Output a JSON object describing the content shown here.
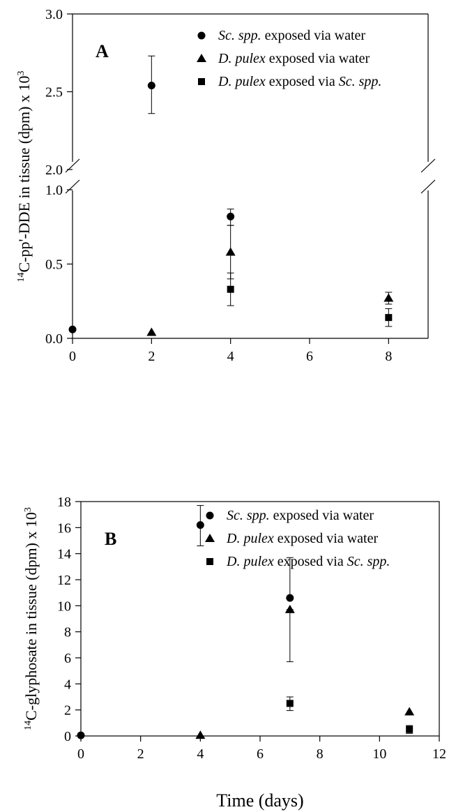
{
  "figure": {
    "x_title": "Time (days)"
  },
  "chart_data": [
    {
      "type": "scatter",
      "panel": "A",
      "ylabel_sup": "14",
      "ylabel_main": "C-pp'-DDE in tissue (dpm) x 10",
      "ylabel_exp": "3",
      "xlim": [
        0,
        9
      ],
      "x_ticks": [
        "0",
        "2",
        "4",
        "6",
        "8"
      ],
      "ylim": [
        0,
        3.0
      ],
      "y_axis_break": [
        1.0,
        2.0
      ],
      "y_ticks": [
        "0.0",
        "0.5",
        "1.0",
        "2.0",
        "2.5",
        "3.0"
      ],
      "grid": false,
      "legend_position": "top-right",
      "series": [
        {
          "name_italic": "Sc. spp.",
          "name_rest": " exposed via water",
          "marker": "circle",
          "points": [
            {
              "x": 0,
              "y": 0.06
            },
            {
              "x": 2,
              "y": 2.54,
              "err_low": 2.36,
              "err_high": 2.73
            },
            {
              "x": 4,
              "y": 0.82,
              "err_low": 0.76,
              "err_high": 0.87
            }
          ]
        },
        {
          "name_italic": "D. pulex",
          "name_rest": " exposed via water",
          "marker": "triangle",
          "points": [
            {
              "x": 2,
              "y": 0.04
            },
            {
              "x": 4,
              "y": 0.58,
              "err_low": 0.4,
              "err_high": 0.76
            },
            {
              "x": 8,
              "y": 0.27,
              "err_low": 0.23,
              "err_high": 0.31
            }
          ]
        },
        {
          "name_italic": "D. pulex",
          "name_rest": " exposed via ",
          "name_italic2": "Sc. spp.",
          "marker": "square",
          "points": [
            {
              "x": 4,
              "y": 0.33,
              "err_low": 0.22,
              "err_high": 0.44
            },
            {
              "x": 8,
              "y": 0.14,
              "err_low": 0.08,
              "err_high": 0.2
            }
          ]
        }
      ]
    },
    {
      "type": "scatter",
      "panel": "B",
      "ylabel_sup": "14",
      "ylabel_main": "C-glyphosate in tissue (dpm) x 10",
      "ylabel_exp": "3",
      "xlim": [
        0,
        12
      ],
      "x_ticks": [
        "0",
        "2",
        "4",
        "6",
        "8",
        "10",
        "12"
      ],
      "ylim": [
        0,
        18
      ],
      "y_ticks": [
        "0",
        "2",
        "4",
        "6",
        "8",
        "10",
        "12",
        "14",
        "16",
        "18"
      ],
      "grid": false,
      "legend_position": "top-right",
      "series": [
        {
          "name_italic": "Sc. spp.",
          "name_rest": " exposed via water",
          "marker": "circle",
          "points": [
            {
              "x": 0,
              "y": 0.05
            },
            {
              "x": 4,
              "y": 16.2,
              "err_low": 14.6,
              "err_high": 17.7
            },
            {
              "x": 7,
              "y": 10.6,
              "err_low": 10.6,
              "err_high": 13.7
            }
          ]
        },
        {
          "name_italic": "D. pulex",
          "name_rest": "  exposed via water",
          "marker": "triangle",
          "points": [
            {
              "x": 4,
              "y": 0.05
            },
            {
              "x": 7,
              "y": 9.7,
              "err_low": 5.7,
              "err_high": 9.7
            },
            {
              "x": 11,
              "y": 1.85
            }
          ]
        },
        {
          "name_italic": "D. pulex",
          "name_rest": " exposed via ",
          "name_italic2": "Sc. spp.",
          "marker": "square",
          "points": [
            {
              "x": 7,
              "y": 2.5,
              "err_low": 1.95,
              "err_high": 3.0
            },
            {
              "x": 11,
              "y": 0.5,
              "err_low": 0.2,
              "err_high": 0.8
            }
          ]
        }
      ]
    }
  ]
}
